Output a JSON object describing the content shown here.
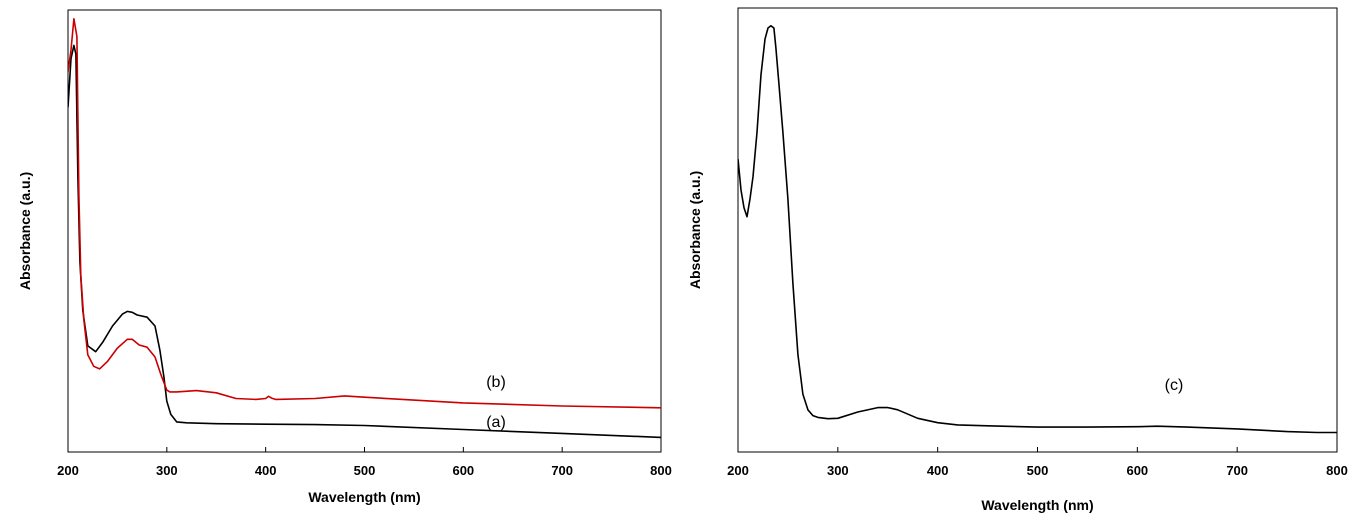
{
  "chart_data": [
    {
      "type": "line",
      "xlabel": "Wavelength (nm)",
      "ylabel": "Absorbance (a.u.)",
      "xlim": [
        200,
        800
      ],
      "xticks": [
        "200",
        "300",
        "400",
        "500",
        "600",
        "700",
        "800"
      ],
      "ylim": [
        0,
        1.0
      ],
      "y_ticks_shown": false,
      "grid": false,
      "legend": "none",
      "series": [
        {
          "name": "(a)",
          "color": "#000000",
          "x": [
            200,
            203,
            206,
            208,
            210,
            212,
            215,
            220,
            228,
            235,
            245,
            255,
            260,
            265,
            270,
            280,
            288,
            293,
            297,
            300,
            304,
            310,
            320,
            350,
            400,
            450,
            500,
            600,
            700,
            800
          ],
          "y": [
            0.78,
            0.89,
            0.92,
            0.9,
            0.62,
            0.43,
            0.32,
            0.24,
            0.227,
            0.248,
            0.285,
            0.312,
            0.318,
            0.316,
            0.31,
            0.305,
            0.285,
            0.23,
            0.17,
            0.115,
            0.085,
            0.068,
            0.066,
            0.064,
            0.063,
            0.062,
            0.06,
            0.051,
            0.042,
            0.033
          ]
        },
        {
          "name": "(b)",
          "color": "#cc0000",
          "x": [
            200,
            203,
            206,
            209,
            211,
            213,
            216,
            220,
            226,
            232,
            240,
            250,
            260,
            265,
            272,
            280,
            288,
            294,
            300,
            303,
            310,
            330,
            350,
            370,
            390,
            400,
            403,
            406,
            410,
            450,
            480,
            500,
            600,
            700,
            800
          ],
          "y": [
            0.86,
            0.91,
            0.98,
            0.94,
            0.58,
            0.4,
            0.3,
            0.22,
            0.194,
            0.188,
            0.205,
            0.235,
            0.255,
            0.255,
            0.242,
            0.237,
            0.215,
            0.175,
            0.14,
            0.136,
            0.136,
            0.139,
            0.134,
            0.121,
            0.119,
            0.121,
            0.126,
            0.122,
            0.119,
            0.121,
            0.127,
            0.124,
            0.111,
            0.104,
            0.1
          ]
        }
      ],
      "annotations": [
        "(a)",
        "(b)"
      ]
    },
    {
      "type": "line",
      "xlabel": "Wavelength (nm)",
      "ylabel": "Absorbance (a.u.)",
      "xlim": [
        200,
        800
      ],
      "xticks": [
        "200",
        "300",
        "400",
        "500",
        "600",
        "700",
        "800"
      ],
      "ylim": [
        0,
        1.0
      ],
      "y_ticks_shown": false,
      "grid": false,
      "legend": "none",
      "series": [
        {
          "name": "(c)",
          "color": "#000000",
          "x": [
            200,
            203,
            206,
            209,
            212,
            215,
            219,
            223,
            227,
            230,
            233,
            236,
            238,
            241,
            245,
            250,
            255,
            260,
            265,
            270,
            275,
            280,
            290,
            300,
            320,
            340,
            350,
            360,
            380,
            400,
            420,
            450,
            500,
            550,
            600,
            620,
            650,
            700,
            750,
            780,
            800
          ],
          "y": [
            0.66,
            0.59,
            0.55,
            0.53,
            0.57,
            0.62,
            0.72,
            0.85,
            0.93,
            0.955,
            0.96,
            0.955,
            0.91,
            0.83,
            0.72,
            0.57,
            0.38,
            0.22,
            0.13,
            0.095,
            0.082,
            0.078,
            0.075,
            0.076,
            0.09,
            0.1,
            0.1,
            0.095,
            0.076,
            0.066,
            0.061,
            0.059,
            0.056,
            0.056,
            0.057,
            0.058,
            0.056,
            0.052,
            0.046,
            0.044,
            0.044
          ]
        }
      ],
      "annotations": [
        "(c)"
      ]
    }
  ]
}
